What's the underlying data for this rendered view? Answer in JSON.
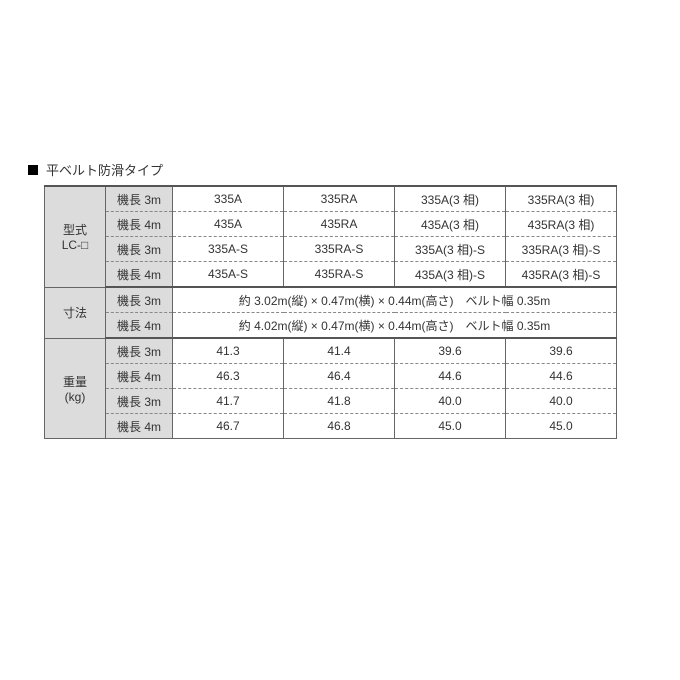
{
  "title": "平ベルト防滑タイプ",
  "headers": {
    "model": "型式\nLC-□",
    "dims": "寸法",
    "weight": "重量\n(kg)"
  },
  "subhead": {
    "len3": "機長 3m",
    "len4": "機長 4m"
  },
  "model": {
    "r1": [
      "335A",
      "335RA",
      "335A(3 相)",
      "335RA(3 相)"
    ],
    "r2": [
      "435A",
      "435RA",
      "435A(3 相)",
      "435RA(3 相)"
    ],
    "r3": [
      "335A-S",
      "335RA-S",
      "335A(3 相)-S",
      "335RA(3 相)-S"
    ],
    "r4": [
      "435A-S",
      "435RA-S",
      "435A(3 相)-S",
      "435RA(3 相)-S"
    ]
  },
  "dims": {
    "r1": "約 3.02m(縦) × 0.47m(横) × 0.44m(高さ)　ベルト幅 0.35m",
    "r2": "約 4.02m(縦) × 0.47m(横) × 0.44m(高さ)　ベルト幅 0.35m"
  },
  "weight": {
    "r1": [
      "41.3",
      "41.4",
      "39.6",
      "39.6"
    ],
    "r2": [
      "46.3",
      "46.4",
      "44.6",
      "44.6"
    ],
    "r3": [
      "41.7",
      "41.8",
      "40.0",
      "40.0"
    ],
    "r4": [
      "46.7",
      "46.8",
      "45.0",
      "45.0"
    ]
  },
  "colors": {
    "border": "#666666",
    "header_bg": "#dcdcdc",
    "text": "#333333"
  }
}
